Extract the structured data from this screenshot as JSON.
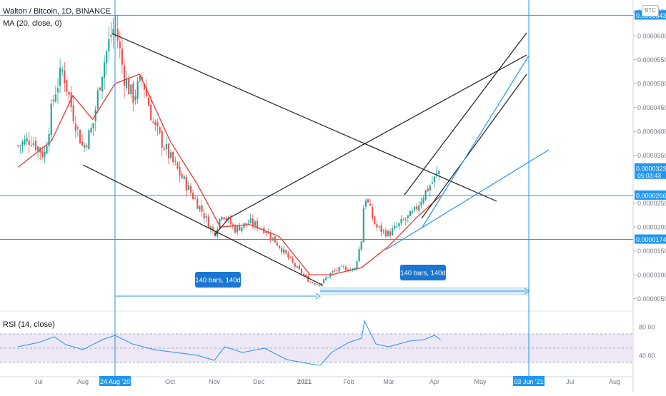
{
  "header": {
    "title": "Walton / Bitcoin, 1D, BINANCE",
    "ma_label": "MA (20, close, 0)",
    "rsi_label": "RSI (14, close)",
    "currency_badge": "BTC"
  },
  "colors": {
    "up": "#26a69a",
    "down": "#ef5350",
    "ma": "#e53935",
    "blue": "#2196f3",
    "trendline": "#1e1e1e",
    "rsi_line": "#2196f3",
    "rsi_band": "#ede7f6",
    "axis_text": "#787b86"
  },
  "chart_data": [
    {
      "type": "candlestick",
      "title": "Walton / Bitcoin, 1D, BINANCE",
      "x_axis_labels": [
        "Jul",
        "Aug",
        "24 Aug '20",
        "Oct",
        "Nov",
        "Dec",
        "2021",
        "Feb",
        "Mar",
        "Apr",
        "May",
        "03 Jun '21",
        "Jul",
        "Aug"
      ],
      "y_ticks": [
        "0.0000650",
        "0.0000600",
        "0.0000550",
        "0.0000500",
        "0.0000450",
        "0.0000400",
        "0.0000350",
        "0.0000250",
        "0.0000200",
        "0.0000150",
        "0.0000100",
        "0.0000050"
      ],
      "y_range": [
        3e-06,
        6.75e-05
      ],
      "price_labels": [
        {
          "text": "0.0000643",
          "value": 6.43e-05
        },
        {
          "text": "0.0000323",
          "value": 3.23e-05,
          "sub": "05:03:43"
        },
        {
          "text": "0.0000266",
          "value": 2.66e-05
        },
        {
          "text": "0.0000174",
          "value": 1.74e-05
        }
      ],
      "close_series": [
        {
          "x": "2020-06-15",
          "y": 3.7e-05
        },
        {
          "x": "2020-06-25",
          "y": 3.85e-05
        },
        {
          "x": "2020-07-05",
          "y": 3.5e-05
        },
        {
          "x": "2020-07-12",
          "y": 4.8e-05
        },
        {
          "x": "2020-07-18",
          "y": 5.3e-05
        },
        {
          "x": "2020-07-24",
          "y": 4.5e-05
        },
        {
          "x": "2020-08-01",
          "y": 3.65e-05
        },
        {
          "x": "2020-08-08",
          "y": 4.1e-05
        },
        {
          "x": "2020-08-14",
          "y": 5.2e-05
        },
        {
          "x": "2020-08-20",
          "y": 5.9e-05
        },
        {
          "x": "2020-08-24",
          "y": 6.25e-05
        },
        {
          "x": "2020-08-30",
          "y": 5.2e-05
        },
        {
          "x": "2020-09-05",
          "y": 4.7e-05
        },
        {
          "x": "2020-09-12",
          "y": 5.1e-05
        },
        {
          "x": "2020-09-20",
          "y": 4.1e-05
        },
        {
          "x": "2020-10-01",
          "y": 3.45e-05
        },
        {
          "x": "2020-10-12",
          "y": 2.9e-05
        },
        {
          "x": "2020-10-22",
          "y": 2.4e-05
        },
        {
          "x": "2020-11-01",
          "y": 1.85e-05
        },
        {
          "x": "2020-11-06",
          "y": 2.3e-05
        },
        {
          "x": "2020-11-15",
          "y": 1.95e-05
        },
        {
          "x": "2020-11-25",
          "y": 2.1e-05
        },
        {
          "x": "2020-12-05",
          "y": 1.95e-05
        },
        {
          "x": "2020-12-15",
          "y": 1.6e-05
        },
        {
          "x": "2020-12-25",
          "y": 1.2e-05
        },
        {
          "x": "2021-01-05",
          "y": 8.5e-06
        },
        {
          "x": "2021-01-12",
          "y": 8e-06
        },
        {
          "x": "2021-01-20",
          "y": 1.05e-05
        },
        {
          "x": "2021-01-28",
          "y": 1.15e-05
        },
        {
          "x": "2021-02-05",
          "y": 1.1e-05
        },
        {
          "x": "2021-02-10",
          "y": 1.75e-05
        },
        {
          "x": "2021-02-12",
          "y": 2.7e-05
        },
        {
          "x": "2021-02-20",
          "y": 2e-05
        },
        {
          "x": "2021-03-01",
          "y": 1.85e-05
        },
        {
          "x": "2021-03-10",
          "y": 2.1e-05
        },
        {
          "x": "2021-03-18",
          "y": 2.3e-05
        },
        {
          "x": "2021-03-25",
          "y": 2.7e-05
        },
        {
          "x": "2021-04-01",
          "y": 3e-05
        },
        {
          "x": "2021-04-05",
          "y": 3.23e-05
        }
      ],
      "moving_average": {
        "name": "MA (20, close, 0)",
        "points": [
          {
            "x": "2020-06-15",
            "y": 3.25e-05
          },
          {
            "x": "2020-07-10",
            "y": 3.8e-05
          },
          {
            "x": "2020-07-25",
            "y": 4.75e-05
          },
          {
            "x": "2020-08-08",
            "y": 4.25e-05
          },
          {
            "x": "2020-08-24",
            "y": 5e-05
          },
          {
            "x": "2020-09-10",
            "y": 5.2e-05
          },
          {
            "x": "2020-10-01",
            "y": 3.8e-05
          },
          {
            "x": "2020-10-20",
            "y": 2.9e-05
          },
          {
            "x": "2020-11-05",
            "y": 2e-05
          },
          {
            "x": "2020-11-25",
            "y": 2.05e-05
          },
          {
            "x": "2020-12-15",
            "y": 1.8e-05
          },
          {
            "x": "2021-01-05",
            "y": 1e-05
          },
          {
            "x": "2021-01-20",
            "y": 1e-05
          },
          {
            "x": "2021-02-10",
            "y": 1.15e-05
          },
          {
            "x": "2021-03-01",
            "y": 1.6e-05
          },
          {
            "x": "2021-03-20",
            "y": 2.2e-05
          },
          {
            "x": "2021-04-05",
            "y": 2.65e-05
          }
        ]
      },
      "annotations": [
        {
          "text": "140 bars, 140d",
          "from": "2020-08-24",
          "to": "2021-01-12"
        },
        {
          "text": "140 bars, 140d",
          "from": "2021-01-12",
          "to": "2021-06-03"
        }
      ],
      "horizontal_lines": [
        6.43e-05,
        2.66e-05,
        1.74e-05
      ],
      "vertical_lines": [
        "2020-08-24",
        "2021-06-03"
      ]
    },
    {
      "type": "line",
      "title": "RSI (14, close)",
      "y_ticks": [
        "80.00",
        "40.00"
      ],
      "y_range": [
        18,
        98
      ],
      "band": [
        30,
        70
      ],
      "points": [
        {
          "x": "2020-06-15",
          "y": 52
        },
        {
          "x": "2020-07-01",
          "y": 58
        },
        {
          "x": "2020-07-12",
          "y": 66
        },
        {
          "x": "2020-07-20",
          "y": 55
        },
        {
          "x": "2020-08-01",
          "y": 48
        },
        {
          "x": "2020-08-15",
          "y": 62
        },
        {
          "x": "2020-08-24",
          "y": 68
        },
        {
          "x": "2020-09-05",
          "y": 56
        },
        {
          "x": "2020-09-20",
          "y": 48
        },
        {
          "x": "2020-10-05",
          "y": 44
        },
        {
          "x": "2020-10-20",
          "y": 40
        },
        {
          "x": "2020-11-01",
          "y": 33
        },
        {
          "x": "2020-11-08",
          "y": 52
        },
        {
          "x": "2020-11-20",
          "y": 44
        },
        {
          "x": "2020-12-05",
          "y": 50
        },
        {
          "x": "2020-12-20",
          "y": 34
        },
        {
          "x": "2021-01-05",
          "y": 28
        },
        {
          "x": "2021-01-12",
          "y": 26
        },
        {
          "x": "2021-01-20",
          "y": 44
        },
        {
          "x": "2021-02-01",
          "y": 58
        },
        {
          "x": "2021-02-10",
          "y": 64
        },
        {
          "x": "2021-02-12",
          "y": 88
        },
        {
          "x": "2021-02-20",
          "y": 56
        },
        {
          "x": "2021-03-01",
          "y": 52
        },
        {
          "x": "2021-03-15",
          "y": 60
        },
        {
          "x": "2021-03-25",
          "y": 62
        },
        {
          "x": "2021-04-01",
          "y": 68
        },
        {
          "x": "2021-04-05",
          "y": 62
        }
      ]
    }
  ]
}
